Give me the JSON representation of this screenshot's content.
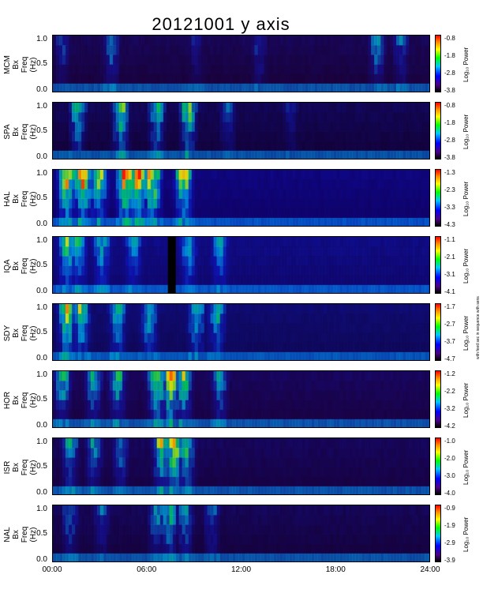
{
  "title": "20121001 y axis",
  "side_note": "with feed sec in sequence with sens",
  "chart_data": {
    "type": "heatmap",
    "x_tick_labels": [
      "00:00",
      "06:00",
      "12:00",
      "18:00",
      "24:00"
    ],
    "x_range_hours": [
      0,
      24
    ],
    "panels": [
      {
        "station": "MCM Bx",
        "ylabel": "Freq (Hz)",
        "y_ticks": [
          "1.0",
          "0.5",
          "0.0"
        ],
        "cbar_label": "Log₁₀ Power",
        "cbar_ticks": [
          "-0.8",
          "-1.8",
          "-2.8",
          "-3.8"
        ]
      },
      {
        "station": "SPA Bx",
        "ylabel": "Freq (Hz)",
        "y_ticks": [
          "1.0",
          "0.5",
          "0.0"
        ],
        "cbar_label": "Log₁₀ Power",
        "cbar_ticks": [
          "-0.8",
          "-1.8",
          "-2.8",
          "-3.8"
        ]
      },
      {
        "station": "HAL Bx",
        "ylabel": "Freq (Hz)",
        "y_ticks": [
          "1.0",
          "0.5",
          "0.0"
        ],
        "cbar_label": "Log₁₀ Power",
        "cbar_ticks": [
          "-1.3",
          "-2.3",
          "-3.3",
          "-4.3"
        ]
      },
      {
        "station": "IQA Bx",
        "ylabel": "Freq (Hz)",
        "y_ticks": [
          "1.0",
          "0.5",
          "0.0"
        ],
        "cbar_label": "Log₁₀ Power",
        "cbar_ticks": [
          "-1.1",
          "-2.1",
          "-3.1",
          "-4.1"
        ]
      },
      {
        "station": "SDY Bx",
        "ylabel": "Freq (Hz)",
        "y_ticks": [
          "1.0",
          "0.5",
          "0.0"
        ],
        "cbar_label": "Log₁₀ Power",
        "cbar_ticks": [
          "-1.7",
          "-2.7",
          "-3.7",
          "-4.7"
        ]
      },
      {
        "station": "HOR Bx",
        "ylabel": "Freq (Hz)",
        "y_ticks": [
          "1.0",
          "0.5",
          "0.0"
        ],
        "cbar_label": "Log₁₀ Power",
        "cbar_ticks": [
          "-1.2",
          "-2.2",
          "-3.2",
          "-4.2"
        ]
      },
      {
        "station": "ISR Bx",
        "ylabel": "Freq (Hz)",
        "y_ticks": [
          "1.0",
          "0.5",
          "0.0"
        ],
        "cbar_label": "Log₁₀ Power",
        "cbar_ticks": [
          "-1.0",
          "-2.0",
          "-3.0",
          "-4.0"
        ]
      },
      {
        "station": "NAL Bx",
        "ylabel": "Freq (Hz)",
        "y_ticks": [
          "1.0",
          "0.5",
          "0.0"
        ],
        "cbar_label": "Log₁₀ Power",
        "cbar_ticks": [
          "-0.9",
          "-1.9",
          "-2.9",
          "-3.9"
        ]
      }
    ]
  }
}
